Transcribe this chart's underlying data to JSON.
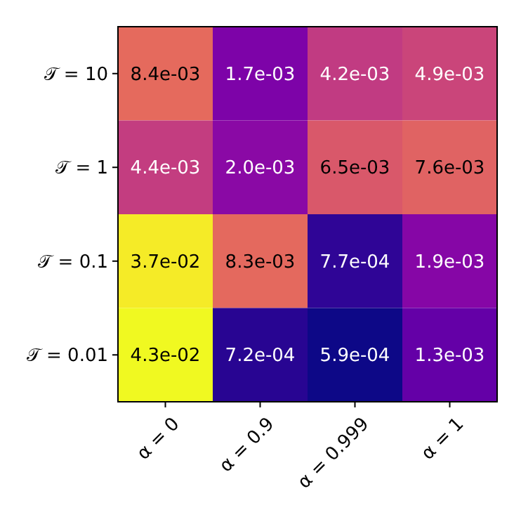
{
  "chart_data": {
    "type": "heatmap",
    "categories": [
      "α = 0",
      "α = 0.9",
      "α = 0.999",
      "α = 1"
    ],
    "y_categories": [
      "𝒯 = 10",
      "𝒯 = 1",
      "𝒯 = 0.1",
      "𝒯 = 0.01"
    ],
    "cells": [
      [
        0.0084,
        0.0017,
        0.0042,
        0.0049
      ],
      [
        0.0044,
        0.002,
        0.0065,
        0.0076
      ],
      [
        0.037,
        0.0083,
        0.00077,
        0.0019
      ],
      [
        0.043,
        0.00072,
        0.00059,
        0.0013
      ]
    ],
    "cell_labels": [
      [
        "8.4e-03",
        "1.7e-03",
        "4.2e-03",
        "4.9e-03"
      ],
      [
        "4.4e-03",
        "2.0e-03",
        "6.5e-03",
        "7.6e-03"
      ],
      [
        "3.7e-02",
        "8.3e-03",
        "7.7e-04",
        "1.9e-03"
      ],
      [
        "4.3e-02",
        "7.2e-04",
        "5.9e-04",
        "1.3e-03"
      ]
    ]
  }
}
